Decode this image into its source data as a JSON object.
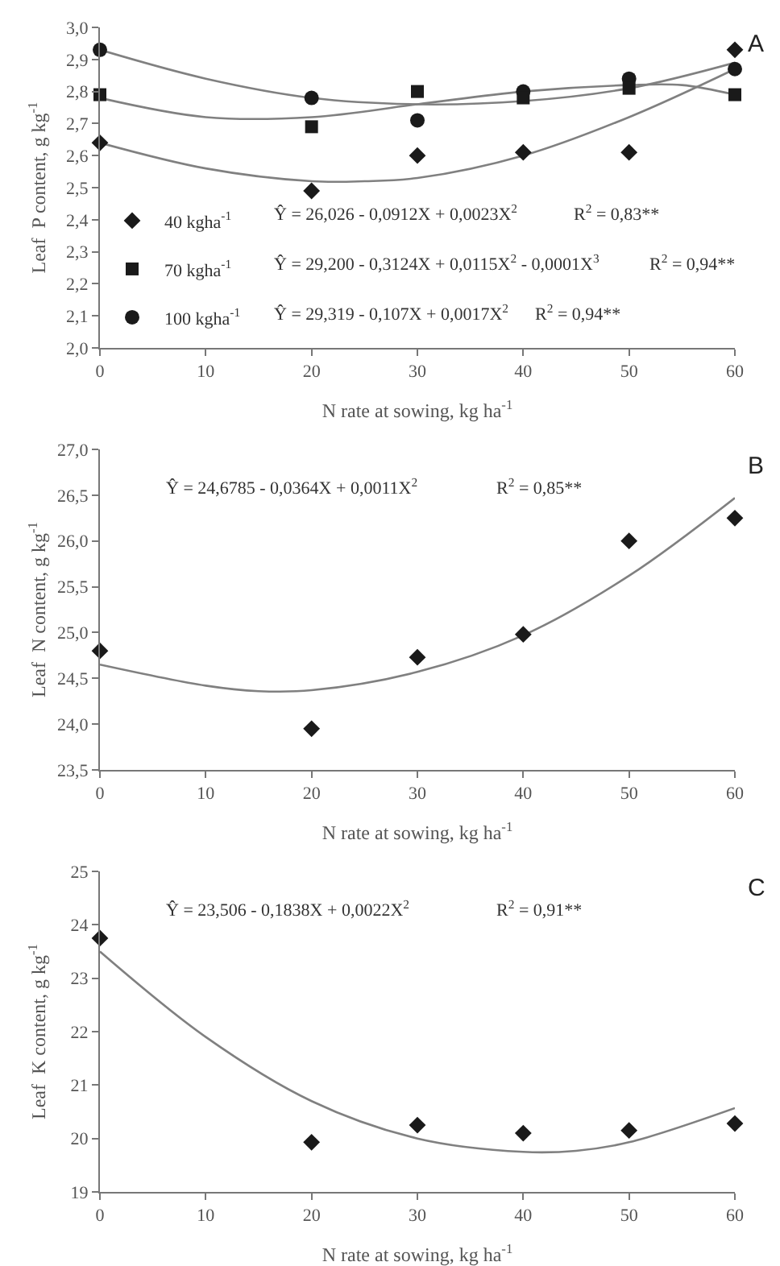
{
  "chart_data": [
    {
      "type": "scatter",
      "xlabel": "N rate at sowing, kg ha$^{-1}$",
      "ylabel": "Leaf  P content, g kg$^{-1}$",
      "xlim": [
        0,
        60
      ],
      "xticks": [
        0,
        10,
        20,
        30,
        40,
        50,
        60
      ],
      "ylim": [
        2.0,
        3.0
      ],
      "yticks": [
        {
          "value": 2.0,
          "label": "2,0"
        },
        {
          "value": 2.1,
          "label": "2,1"
        },
        {
          "value": 2.2,
          "label": "2,2"
        },
        {
          "value": 2.3,
          "label": "2,3"
        },
        {
          "value": 2.4,
          "label": "2,4"
        },
        {
          "value": 2.5,
          "label": "2,5"
        },
        {
          "value": 2.6,
          "label": "2,6"
        },
        {
          "value": 2.7,
          "label": "2,7"
        },
        {
          "value": 2.8,
          "label": "2,8"
        },
        {
          "value": 2.9,
          "label": "2,9"
        },
        {
          "value": 3.0,
          "label": "3,0"
        }
      ],
      "grid": false,
      "legend": "bottom left",
      "annotations": [
        "A",
        "Ŷ = 26,026 - 0,0912X + 0,0023X$^{2}$",
        "R$^{2}$ = 0,83**",
        "Ŷ = 29,200 - 0,3124X + 0,0115X$^{2}$ - 0,0001X$^{3}$",
        "R$^{2}$ = 0,94**",
        "Ŷ = 29,319 - 0,107X + 0,0017X$^{2}$",
        "R$^{2}$ = 0,94**"
      ],
      "series": [
        {
          "name": "40 kgha$^{-1}$",
          "marker": "diamond",
          "color": "#1a1a1a",
          "x": [
            0,
            20,
            30,
            40,
            50,
            60
          ],
          "values": [
            2.64,
            2.49,
            2.6,
            2.61,
            2.61,
            2.93
          ]
        },
        {
          "name": "70 kgha$^{-1}$",
          "marker": "square",
          "color": "#1a1a1a",
          "x": [
            0,
            20,
            30,
            40,
            50,
            60
          ],
          "values": [
            2.79,
            2.69,
            2.8,
            2.78,
            2.81,
            2.79
          ]
        },
        {
          "name": "100 kgha$^{-1}$",
          "marker": "circle",
          "color": "#1a1a1a",
          "x": [
            0,
            20,
            30,
            40,
            50,
            60
          ],
          "values": [
            2.93,
            2.78,
            2.71,
            2.8,
            2.84,
            2.87
          ]
        },
        {
          "type": "line",
          "color": "#808080",
          "x": [
            0,
            10,
            20,
            25,
            30,
            40,
            50,
            60
          ],
          "values": [
            2.64,
            2.56,
            2.52,
            2.52,
            2.53,
            2.6,
            2.72,
            2.87
          ]
        },
        {
          "type": "line",
          "color": "#808080",
          "x": [
            0,
            10,
            20,
            30,
            40,
            50,
            55,
            60
          ],
          "values": [
            2.78,
            2.72,
            2.72,
            2.76,
            2.8,
            2.82,
            2.82,
            2.79
          ]
        },
        {
          "type": "line",
          "color": "#808080",
          "x": [
            0,
            10,
            20,
            30,
            40,
            50,
            60
          ],
          "values": [
            2.93,
            2.84,
            2.78,
            2.76,
            2.77,
            2.81,
            2.89
          ]
        }
      ]
    },
    {
      "type": "scatter",
      "xlabel": "N rate at sowing, kg ha$^{-1}$",
      "ylabel": "Leaf  N content, g kg$^{-1}$",
      "xlim": [
        0,
        60
      ],
      "xticks": [
        0,
        10,
        20,
        30,
        40,
        50,
        60
      ],
      "ylim": [
        23.5,
        27.0
      ],
      "yticks": [
        {
          "value": 23.5,
          "label": "23,5"
        },
        {
          "value": 24.0,
          "label": "24,0"
        },
        {
          "value": 24.5,
          "label": "24,5"
        },
        {
          "value": 25.0,
          "label": "25,0"
        },
        {
          "value": 25.5,
          "label": "25,5"
        },
        {
          "value": 26.0,
          "label": "26,0"
        },
        {
          "value": 26.5,
          "label": "26,5"
        },
        {
          "value": 27.0,
          "label": "27,0"
        }
      ],
      "grid": false,
      "annotations": [
        "B",
        "Ŷ = 24,6785 - 0,0364X + 0,0011X$^{2}$",
        "R$^{2}$ = 0,85**"
      ],
      "series": [
        {
          "marker": "diamond",
          "color": "#1a1a1a",
          "x": [
            0,
            20,
            30,
            40,
            50,
            60
          ],
          "values": [
            24.8,
            23.95,
            24.73,
            24.98,
            26.0,
            26.25
          ]
        },
        {
          "type": "line",
          "color": "#808080",
          "x": [
            0,
            10,
            15,
            20,
            30,
            40,
            50,
            60
          ],
          "values": [
            24.65,
            24.42,
            24.36,
            24.37,
            24.57,
            24.97,
            25.62,
            26.47
          ]
        }
      ]
    },
    {
      "type": "scatter",
      "xlabel": "N rate at sowing, kg ha$^{-1}$",
      "ylabel": "Leaf  K content, g kg$^{-1}$",
      "xlim": [
        0,
        60
      ],
      "xticks": [
        0,
        10,
        20,
        30,
        40,
        50,
        60
      ],
      "ylim": [
        19,
        25
      ],
      "yticks": [
        19,
        20,
        21,
        22,
        23,
        24,
        25
      ],
      "grid": false,
      "annotations": [
        "C",
        "Ŷ = 23,506 - 0,1838X + 0,0022X$^{2}$",
        "R$^{2}$ = 0,91**"
      ],
      "series": [
        {
          "marker": "diamond",
          "color": "#1a1a1a",
          "x": [
            0,
            20,
            30,
            40,
            50,
            60
          ],
          "values": [
            23.75,
            19.93,
            20.25,
            20.1,
            20.15,
            20.28
          ]
        },
        {
          "type": "line",
          "color": "#808080",
          "x": [
            0,
            10,
            20,
            30,
            40,
            45,
            50,
            60
          ],
          "values": [
            23.5,
            21.9,
            20.7,
            20.0,
            19.75,
            19.77,
            19.93,
            20.57
          ]
        }
      ]
    }
  ]
}
